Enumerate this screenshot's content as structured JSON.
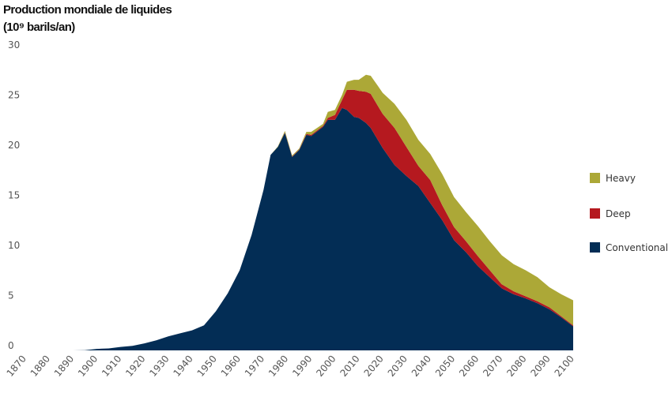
{
  "chart_data": {
    "type": "area",
    "stacked": true,
    "title": "Production mondiale de liquides",
    "ylabel": "(10⁹ barils/an)",
    "xlabel": "",
    "xlim": [
      1870,
      2100
    ],
    "ylim": [
      0,
      30
    ],
    "yticks": [
      "0",
      "5",
      "10",
      "15",
      "20",
      "25",
      "30"
    ],
    "xticks": [
      "1870",
      "1880",
      "1890",
      "1900",
      "1910",
      "1920",
      "1930",
      "1940",
      "1950",
      "1960",
      "1970",
      "1980",
      "1990",
      "2000",
      "2010",
      "2020",
      "2030",
      "2040",
      "2050",
      "2060",
      "2070",
      "2080",
      "2090",
      "2100"
    ],
    "grid": false,
    "legend_position": "right",
    "x": [
      1870,
      1880,
      1890,
      1895,
      1900,
      1905,
      1910,
      1915,
      1920,
      1925,
      1930,
      1935,
      1940,
      1945,
      1950,
      1955,
      1960,
      1965,
      1970,
      1973,
      1976,
      1979,
      1982,
      1985,
      1988,
      1990,
      1995,
      1997,
      2000,
      2003,
      2005,
      2008,
      2010,
      2013,
      2015,
      2018,
      2020,
      2025,
      2030,
      2035,
      2040,
      2045,
      2050,
      2055,
      2060,
      2065,
      2070,
      2075,
      2080,
      2085,
      2090,
      2095,
      2100
    ],
    "series": [
      {
        "name": "Conventional",
        "color": "#032d55",
        "values": [
          0,
          0,
          0,
          0.02,
          0.15,
          0.2,
          0.35,
          0.45,
          0.7,
          1.0,
          1.4,
          1.7,
          2.0,
          2.5,
          3.9,
          5.7,
          8.0,
          11.5,
          16.0,
          19.5,
          20.3,
          21.7,
          19.3,
          20.0,
          21.5,
          21.4,
          22.3,
          23.0,
          23.0,
          24.2,
          24.0,
          23.3,
          23.2,
          22.7,
          22.2,
          21.0,
          20.2,
          18.5,
          17.4,
          16.4,
          14.7,
          13.0,
          11.0,
          9.8,
          8.4,
          7.3,
          6.2,
          5.6,
          5.2,
          4.7,
          4.1,
          3.3,
          2.4
        ]
      },
      {
        "name": "Deep",
        "color": "#b5191f",
        "values": [
          0,
          0,
          0,
          0,
          0,
          0,
          0,
          0,
          0,
          0,
          0,
          0,
          0,
          0,
          0,
          0,
          0,
          0,
          0,
          0,
          0,
          0.05,
          0.05,
          0.05,
          0.1,
          0.1,
          0.1,
          0.2,
          0.5,
          0.8,
          2.0,
          2.7,
          2.7,
          3.1,
          3.4,
          3.4,
          3.4,
          3.7,
          2.9,
          2.0,
          2.3,
          1.5,
          1.3,
          1.1,
          1.0,
          0.7,
          0.4,
          0.3,
          0.2,
          0.2,
          0.2,
          0.1,
          0.1
        ]
      },
      {
        "name": "Heavy",
        "color": "#aca837",
        "values": [
          0,
          0,
          0,
          0,
          0,
          0,
          0,
          0,
          0,
          0,
          0,
          0,
          0,
          0,
          0,
          0,
          0,
          0,
          0,
          0,
          0.05,
          0.15,
          0.1,
          0.1,
          0.2,
          0.3,
          0.2,
          0.6,
          0.5,
          0.5,
          0.8,
          1.0,
          1.1,
          1.7,
          1.8,
          2.0,
          2.1,
          2.4,
          2.7,
          2.6,
          2.6,
          3.1,
          3.0,
          2.9,
          3.0,
          2.9,
          2.9,
          2.7,
          2.6,
          2.4,
          2.0,
          2.2,
          2.5
        ]
      }
    ]
  }
}
